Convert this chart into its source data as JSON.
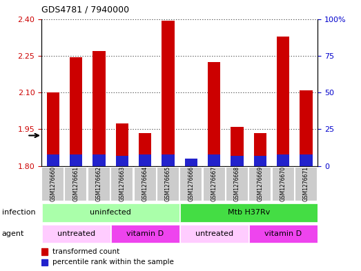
{
  "title": "GDS4781 / 7940000",
  "samples": [
    "GSM1276660",
    "GSM1276661",
    "GSM1276662",
    "GSM1276663",
    "GSM1276664",
    "GSM1276665",
    "GSM1276666",
    "GSM1276667",
    "GSM1276668",
    "GSM1276669",
    "GSM1276670",
    "GSM1276671"
  ],
  "transformed_count": [
    2.1,
    2.245,
    2.27,
    1.975,
    1.935,
    2.395,
    1.825,
    2.225,
    1.96,
    1.935,
    2.33,
    2.11
  ],
  "percentile_rank": [
    8,
    8,
    8,
    7,
    8,
    8,
    5,
    8,
    7,
    7,
    8,
    8
  ],
  "ymin": 1.8,
  "ymax": 2.4,
  "yticks_left": [
    1.8,
    1.95,
    2.1,
    2.25,
    2.4
  ],
  "yticks_right": [
    0,
    25,
    50,
    75,
    100
  ],
  "infection_groups": [
    {
      "label": "uninfected",
      "start": 0,
      "end": 6,
      "color": "#aaffaa"
    },
    {
      "label": "Mtb H37Rv",
      "start": 6,
      "end": 12,
      "color": "#44dd44"
    }
  ],
  "agent_groups": [
    {
      "label": "untreated",
      "start": 0,
      "end": 3,
      "color": "#ffccff"
    },
    {
      "label": "vitamin D",
      "start": 3,
      "end": 6,
      "color": "#ee44ee"
    },
    {
      "label": "untreated",
      "start": 6,
      "end": 9,
      "color": "#ffccff"
    },
    {
      "label": "vitamin D",
      "start": 9,
      "end": 12,
      "color": "#ee44ee"
    }
  ],
  "bar_color_red": "#cc0000",
  "bar_color_blue": "#2222cc",
  "bar_width": 0.55,
  "background_color": "#ffffff",
  "tick_color_left": "#cc0000",
  "tick_color_right": "#0000cc",
  "grid_color": "#000000",
  "label_row1": "infection",
  "label_row2": "agent",
  "legend1": "transformed count",
  "legend2": "percentile rank within the sample",
  "sample_bg_color": "#cccccc"
}
